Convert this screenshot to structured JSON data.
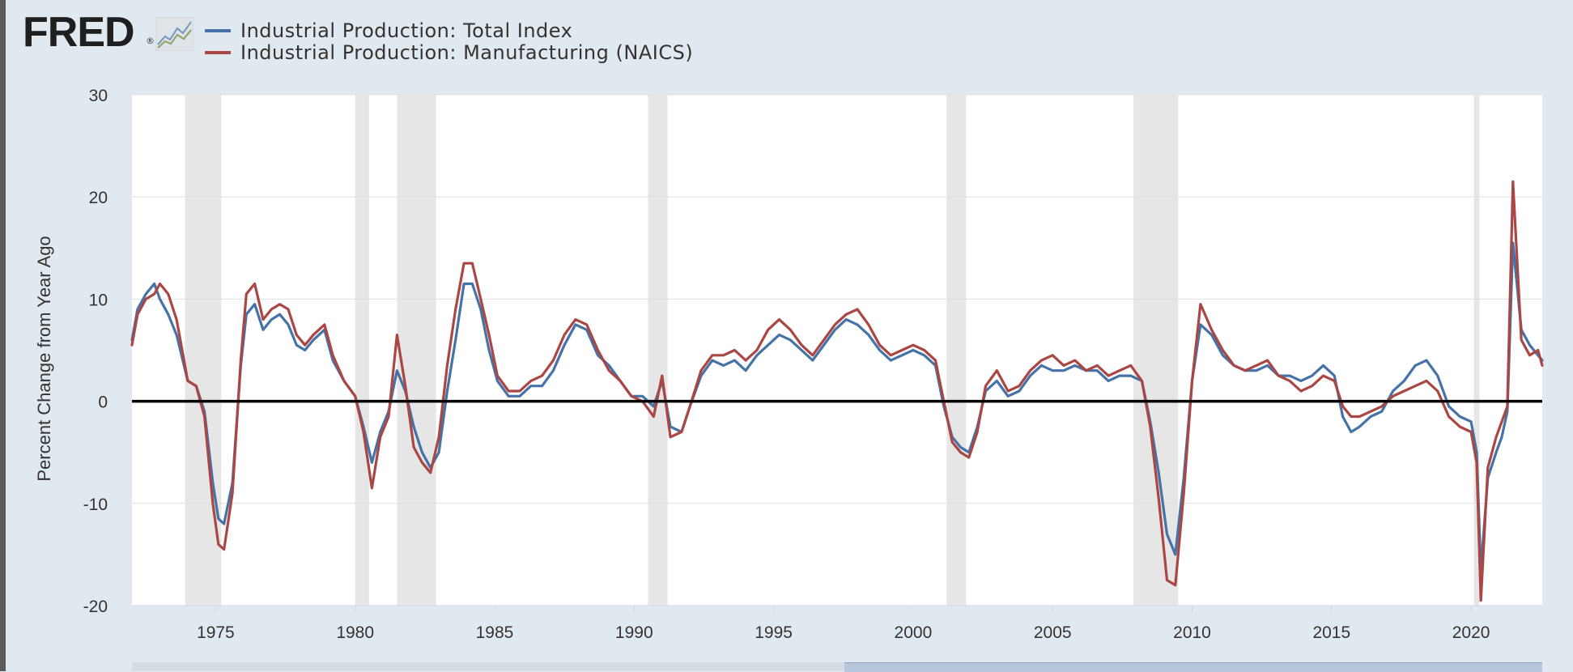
{
  "header": {
    "logo_text": "FRED",
    "logo_mark": "®",
    "logo_icon": "line-chart-icon"
  },
  "colors": {
    "background": "#e1e9f0",
    "plot_bg": "#ffffff",
    "recession": "#e6e6e6",
    "series_total": "#4572a7",
    "series_mfg": "#aa4643",
    "zero_line": "#000000"
  },
  "chart_data": {
    "type": "line",
    "title": "",
    "xlabel": "",
    "ylabel": "Percent Change from Year Ago",
    "xlim": [
      1972.0,
      2022.55
    ],
    "ylim": [
      -20,
      30
    ],
    "yticks": [
      -20,
      -10,
      0,
      10,
      20,
      30
    ],
    "xticks": [
      1975,
      1980,
      1985,
      1990,
      1995,
      2000,
      2005,
      2010,
      2015,
      2020
    ],
    "grid": true,
    "legend_position": "top-left",
    "recessions": [
      [
        1973.9,
        1975.2
      ],
      [
        1980.0,
        1980.5
      ],
      [
        1981.5,
        1982.9
      ],
      [
        1990.5,
        1991.2
      ],
      [
        2001.2,
        2001.9
      ],
      [
        2007.9,
        2009.5
      ],
      [
        2020.1,
        2020.3
      ]
    ],
    "series": [
      {
        "name": "Industrial Production: Total Index",
        "x": [
          1972.0,
          1972.2,
          1972.5,
          1972.8,
          1973.0,
          1973.3,
          1973.6,
          1974.0,
          1974.3,
          1974.6,
          1974.9,
          1975.1,
          1975.3,
          1975.6,
          1975.9,
          1976.1,
          1976.4,
          1976.7,
          1977.0,
          1977.3,
          1977.6,
          1977.9,
          1978.2,
          1978.5,
          1978.9,
          1979.2,
          1979.6,
          1980.0,
          1980.3,
          1980.6,
          1980.9,
          1981.2,
          1981.5,
          1981.8,
          1982.1,
          1982.4,
          1982.7,
          1983.0,
          1983.3,
          1983.6,
          1983.9,
          1984.2,
          1984.5,
          1984.8,
          1985.1,
          1985.5,
          1985.9,
          1986.3,
          1986.7,
          1987.1,
          1987.5,
          1987.9,
          1988.3,
          1988.7,
          1989.1,
          1989.5,
          1989.9,
          1990.3,
          1990.7,
          1991.0,
          1991.3,
          1991.7,
          1992.0,
          1992.4,
          1992.8,
          1993.2,
          1993.6,
          1994.0,
          1994.4,
          1994.8,
          1995.2,
          1995.6,
          1996.0,
          1996.4,
          1996.8,
          1997.2,
          1997.6,
          1998.0,
          1998.4,
          1998.8,
          1999.2,
          1999.6,
          2000.0,
          2000.4,
          2000.8,
          2001.1,
          2001.4,
          2001.7,
          2002.0,
          2002.3,
          2002.6,
          2003.0,
          2003.4,
          2003.8,
          2004.2,
          2004.6,
          2005.0,
          2005.4,
          2005.8,
          2006.2,
          2006.6,
          2007.0,
          2007.4,
          2007.8,
          2008.2,
          2008.5,
          2008.8,
          2009.1,
          2009.4,
          2009.7,
          2010.0,
          2010.3,
          2010.7,
          2011.1,
          2011.5,
          2011.9,
          2012.3,
          2012.7,
          2013.1,
          2013.5,
          2013.9,
          2014.3,
          2014.7,
          2015.1,
          2015.4,
          2015.7,
          2016.0,
          2016.4,
          2016.8,
          2017.2,
          2017.6,
          2018.0,
          2018.4,
          2018.8,
          2019.2,
          2019.6,
          2020.0,
          2020.2,
          2020.35,
          2020.6,
          2020.9,
          2021.1,
          2021.3,
          2021.5,
          2021.8,
          2022.1,
          2022.4,
          2022.55
        ],
        "values": [
          6.0,
          9.0,
          10.5,
          11.5,
          10.0,
          8.5,
          6.5,
          2.0,
          1.5,
          -1.0,
          -8.0,
          -11.5,
          -12.0,
          -8.0,
          3.5,
          8.5,
          9.5,
          7.0,
          8.0,
          8.5,
          7.5,
          5.5,
          5.0,
          6.0,
          7.0,
          4.0,
          2.0,
          0.5,
          -2.5,
          -6.0,
          -3.0,
          -1.0,
          3.0,
          1.0,
          -2.5,
          -5.0,
          -6.5,
          -5.0,
          1.0,
          6.0,
          11.5,
          11.5,
          9.0,
          5.0,
          2.0,
          0.5,
          0.5,
          1.5,
          1.5,
          3.0,
          5.5,
          7.5,
          7.0,
          4.5,
          3.5,
          2.0,
          0.5,
          0.5,
          -0.5,
          2.0,
          -2.5,
          -3.0,
          -0.5,
          2.5,
          4.0,
          3.5,
          4.0,
          3.0,
          4.5,
          5.5,
          6.5,
          6.0,
          5.0,
          4.0,
          5.5,
          7.0,
          8.0,
          7.5,
          6.5,
          5.0,
          4.0,
          4.5,
          5.0,
          4.5,
          3.5,
          -0.5,
          -3.5,
          -4.5,
          -5.0,
          -2.5,
          1.0,
          2.0,
          0.5,
          1.0,
          2.5,
          3.5,
          3.0,
          3.0,
          3.5,
          3.0,
          3.0,
          2.0,
          2.5,
          2.5,
          2.0,
          -2.0,
          -7.0,
          -13.0,
          -15.0,
          -7.5,
          2.0,
          7.5,
          6.5,
          4.5,
          3.5,
          3.0,
          3.0,
          3.5,
          2.5,
          2.5,
          2.0,
          2.5,
          3.5,
          2.5,
          -1.5,
          -3.0,
          -2.5,
          -1.5,
          -1.0,
          1.0,
          2.0,
          3.5,
          4.0,
          2.5,
          -0.5,
          -1.5,
          -2.0,
          -5.0,
          -16.5,
          -7.5,
          -5.0,
          -3.5,
          -1.0,
          15.5,
          7.0,
          5.5,
          4.5,
          4.0
        ]
      },
      {
        "name": "Industrial Production: Manufacturing (NAICS)",
        "x": [
          1972.0,
          1972.2,
          1972.5,
          1972.8,
          1973.0,
          1973.3,
          1973.6,
          1974.0,
          1974.3,
          1974.6,
          1974.9,
          1975.1,
          1975.3,
          1975.6,
          1975.9,
          1976.1,
          1976.4,
          1976.7,
          1977.0,
          1977.3,
          1977.6,
          1977.9,
          1978.2,
          1978.5,
          1978.9,
          1979.2,
          1979.6,
          1980.0,
          1980.3,
          1980.6,
          1980.9,
          1981.2,
          1981.5,
          1981.8,
          1982.1,
          1982.4,
          1982.7,
          1983.0,
          1983.3,
          1983.6,
          1983.9,
          1984.2,
          1984.5,
          1984.8,
          1985.1,
          1985.5,
          1985.9,
          1986.3,
          1986.7,
          1987.1,
          1987.5,
          1987.9,
          1988.3,
          1988.7,
          1989.1,
          1989.5,
          1989.9,
          1990.3,
          1990.7,
          1991.0,
          1991.3,
          1991.7,
          1992.0,
          1992.4,
          1992.8,
          1993.2,
          1993.6,
          1994.0,
          1994.4,
          1994.8,
          1995.2,
          1995.6,
          1996.0,
          1996.4,
          1996.8,
          1997.2,
          1997.6,
          1998.0,
          1998.4,
          1998.8,
          1999.2,
          1999.6,
          2000.0,
          2000.4,
          2000.8,
          2001.1,
          2001.4,
          2001.7,
          2002.0,
          2002.3,
          2002.6,
          2003.0,
          2003.4,
          2003.8,
          2004.2,
          2004.6,
          2005.0,
          2005.4,
          2005.8,
          2006.2,
          2006.6,
          2007.0,
          2007.4,
          2007.8,
          2008.2,
          2008.5,
          2008.8,
          2009.1,
          2009.4,
          2009.7,
          2010.0,
          2010.3,
          2010.7,
          2011.1,
          2011.5,
          2011.9,
          2012.3,
          2012.7,
          2013.1,
          2013.5,
          2013.9,
          2014.3,
          2014.7,
          2015.1,
          2015.4,
          2015.7,
          2016.0,
          2016.4,
          2016.8,
          2017.2,
          2017.6,
          2018.0,
          2018.4,
          2018.8,
          2019.2,
          2019.6,
          2020.0,
          2020.2,
          2020.35,
          2020.6,
          2020.9,
          2021.1,
          2021.3,
          2021.5,
          2021.8,
          2022.1,
          2022.4,
          2022.55
        ],
        "values": [
          5.5,
          8.5,
          10.0,
          10.5,
          11.5,
          10.5,
          8.0,
          2.0,
          1.5,
          -1.5,
          -10.0,
          -14.0,
          -14.5,
          -9.0,
          4.0,
          10.5,
          11.5,
          8.0,
          9.0,
          9.5,
          9.0,
          6.5,
          5.5,
          6.5,
          7.5,
          4.5,
          2.0,
          0.5,
          -3.0,
          -8.5,
          -3.5,
          -1.5,
          6.5,
          1.5,
          -4.5,
          -6.0,
          -7.0,
          -3.5,
          3.5,
          9.0,
          13.5,
          13.5,
          10.0,
          6.5,
          2.5,
          1.0,
          1.0,
          2.0,
          2.5,
          4.0,
          6.5,
          8.0,
          7.5,
          5.0,
          3.0,
          2.0,
          0.5,
          0.0,
          -1.5,
          2.5,
          -3.5,
          -3.0,
          -0.5,
          3.0,
          4.5,
          4.5,
          5.0,
          4.0,
          5.0,
          7.0,
          8.0,
          7.0,
          5.5,
          4.5,
          6.0,
          7.5,
          8.5,
          9.0,
          7.5,
          5.5,
          4.5,
          5.0,
          5.5,
          5.0,
          4.0,
          0.0,
          -4.0,
          -5.0,
          -5.5,
          -3.0,
          1.5,
          3.0,
          1.0,
          1.5,
          3.0,
          4.0,
          4.5,
          3.5,
          4.0,
          3.0,
          3.5,
          2.5,
          3.0,
          3.5,
          2.0,
          -2.5,
          -9.5,
          -17.5,
          -18.0,
          -9.0,
          2.0,
          9.5,
          7.0,
          5.0,
          3.5,
          3.0,
          3.5,
          4.0,
          2.5,
          2.0,
          1.0,
          1.5,
          2.5,
          2.0,
          -0.5,
          -1.5,
          -1.5,
          -1.0,
          -0.5,
          0.5,
          1.0,
          1.5,
          2.0,
          1.0,
          -1.5,
          -2.5,
          -3.0,
          -6.0,
          -19.5,
          -6.5,
          -3.5,
          -2.0,
          -0.5,
          21.5,
          6.0,
          4.5,
          5.0,
          3.5
        ]
      }
    ]
  }
}
